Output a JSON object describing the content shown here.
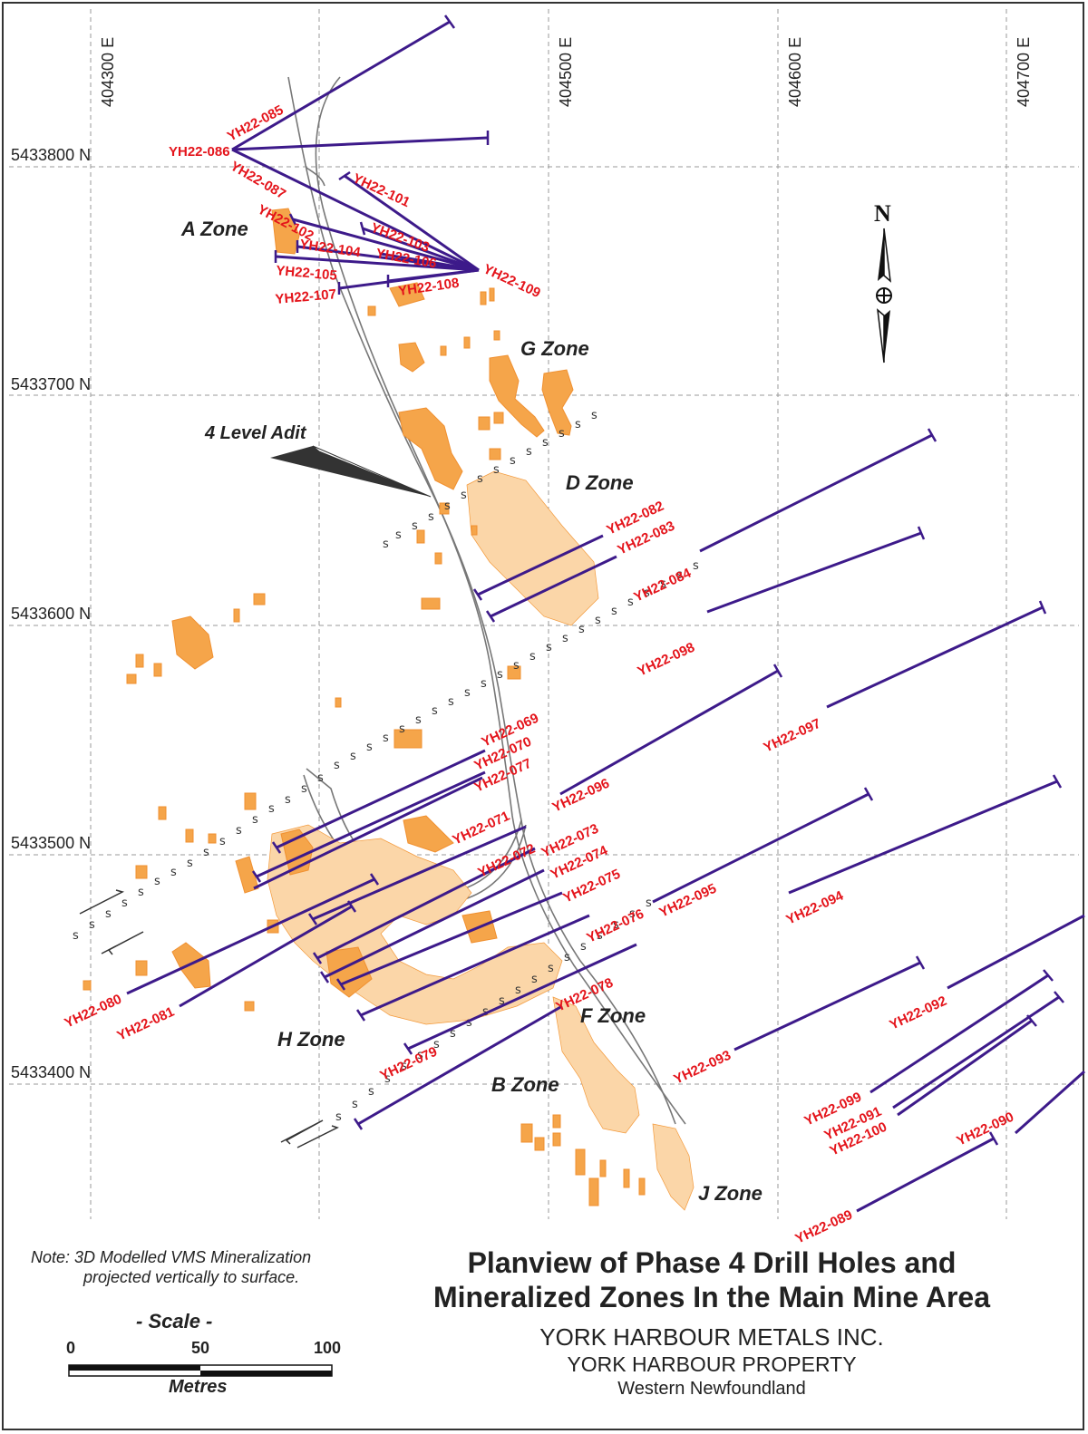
{
  "map": {
    "easting_labels": [
      "404300 E",
      "404500 E",
      "404600 E",
      "404700 E"
    ],
    "northing_labels": [
      "5433800 N",
      "5433700 N",
      "5433600 N",
      "5433500 N",
      "5433400 N"
    ],
    "zones": {
      "a": "A Zone",
      "g": "G Zone",
      "d": "D Zone",
      "h": "H Zone",
      "f": "F Zone",
      "b": "B Zone",
      "j": "J Zone"
    },
    "adit_label": "4 Level Adit",
    "north_label": "N",
    "fault_symbol": "s",
    "colors": {
      "drill_hole": "#3d1a8a",
      "hole_label": "#e4141b",
      "mineralization": "#f5a54a",
      "grid": "#9a9a9a"
    },
    "drill_holes": [
      "YH22-069",
      "YH22-070",
      "YH22-071",
      "YH22-072",
      "YH22-073",
      "YH22-074",
      "YH22-075",
      "YH22-076",
      "YH22-077",
      "YH22-078",
      "YH22-079",
      "YH22-080",
      "YH22-081",
      "YH22-082",
      "YH22-083",
      "YH22-084",
      "YH22-085",
      "YH22-086",
      "YH22-087",
      "YH22-089",
      "YH22-090",
      "YH22-091",
      "YH22-092",
      "YH22-093",
      "YH22-094",
      "YH22-095",
      "YH22-096",
      "YH22-097",
      "YH22-098",
      "YH22-099",
      "YH22-100",
      "YH22-101",
      "YH22-102",
      "YH22-103",
      "YH22-104",
      "YH22-105",
      "YH22-106",
      "YH22-107",
      "YH22-108",
      "YH22-109"
    ]
  },
  "note": {
    "line1": "Note: 3D Modelled VMS Mineralization",
    "line2": "projected vertically to surface."
  },
  "scale": {
    "title": "- Scale -",
    "ticks": [
      "0",
      "50",
      "100"
    ],
    "units": "Metres"
  },
  "title_block": {
    "title_line1": "Planview of Phase 4 Drill Holes and",
    "title_line2": "Mineralized Zones In the Main Mine Area",
    "company": "YORK HARBOUR METALS INC.",
    "property": "YORK HARBOUR PROPERTY",
    "region": "Western Newfoundland"
  }
}
